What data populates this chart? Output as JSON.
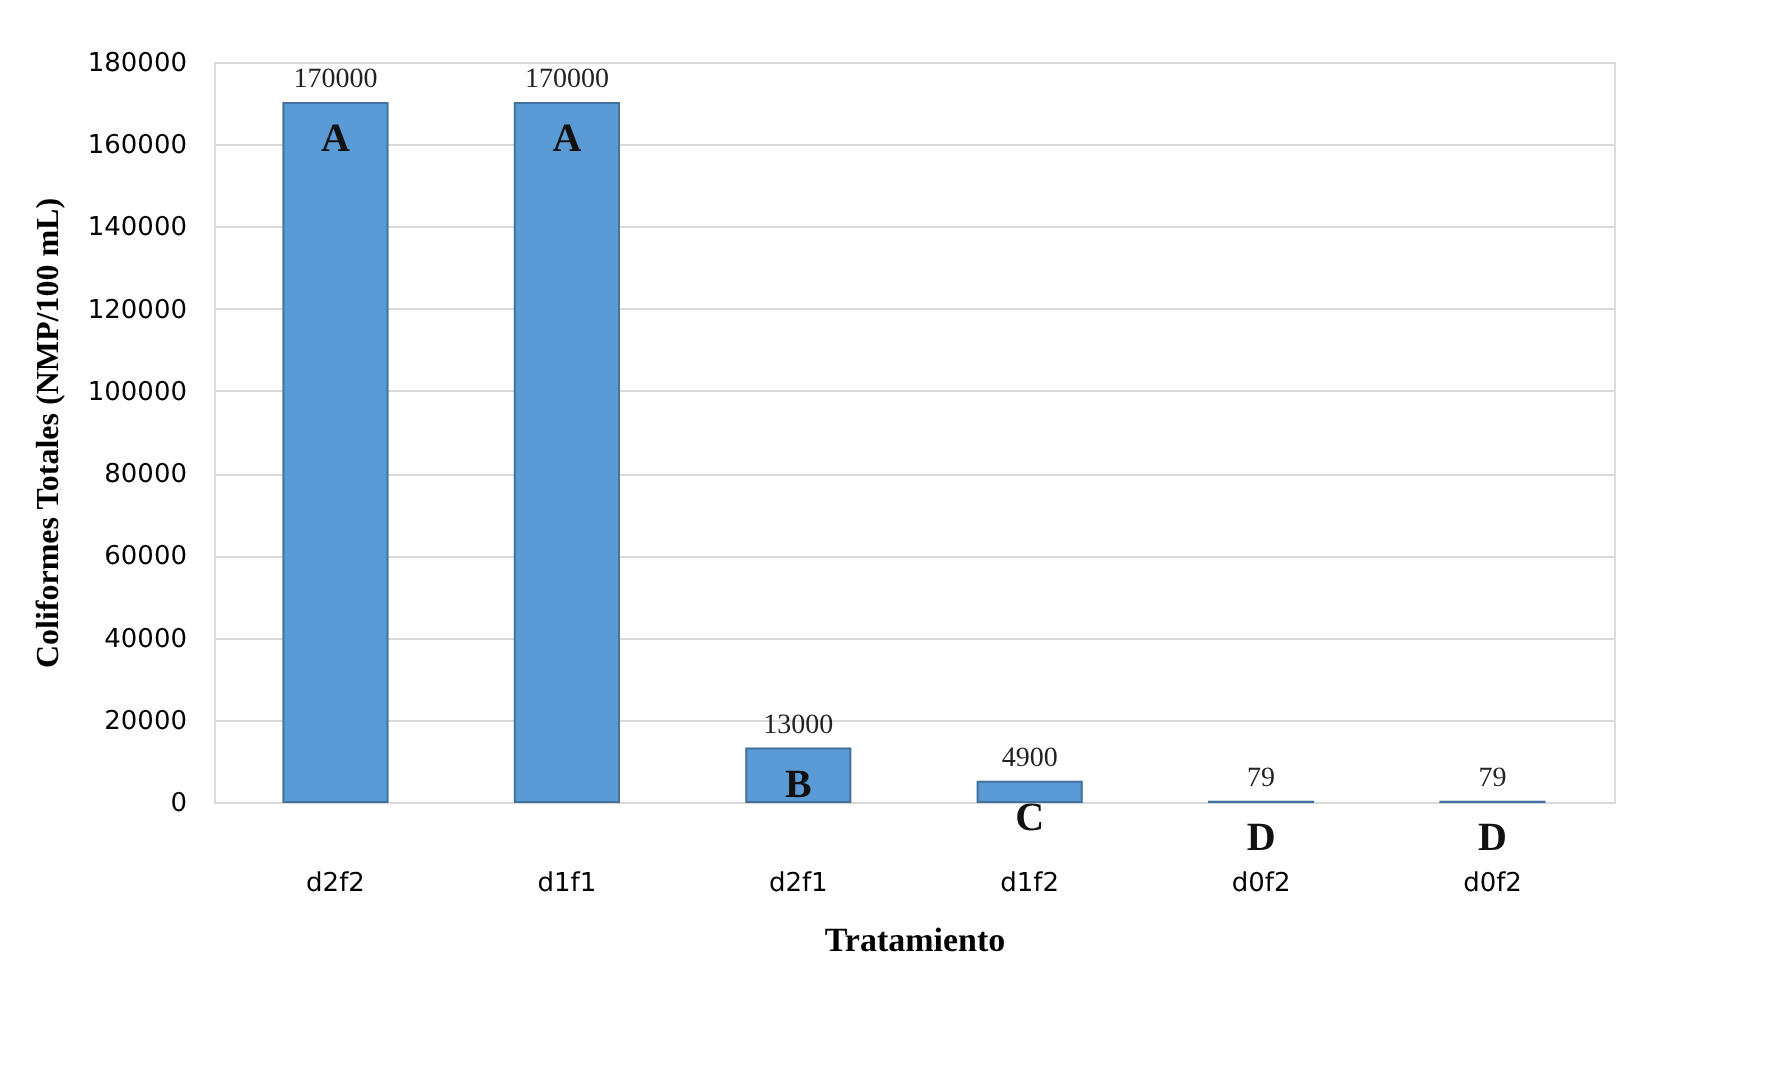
{
  "chart_data": {
    "type": "bar",
    "categories": [
      "d2f2",
      "d1f1",
      "d2f1",
      "d1f2",
      "d0f2",
      "d0f2"
    ],
    "values": [
      170000,
      170000,
      13000,
      4900,
      79,
      79
    ],
    "color": "#5b9bd5",
    "xlabel": "Tratamiento",
    "ylabel": "Coliformes  Totales  (NMP/100 mL)",
    "ylim": [
      0,
      180000
    ],
    "yticks": [
      0,
      20000,
      40000,
      60000,
      80000,
      100000,
      120000,
      140000,
      160000,
      180000
    ],
    "grid": "y",
    "data_labels": true,
    "annotations": [
      "A",
      "A",
      "B",
      "C",
      "D",
      "D"
    ]
  }
}
